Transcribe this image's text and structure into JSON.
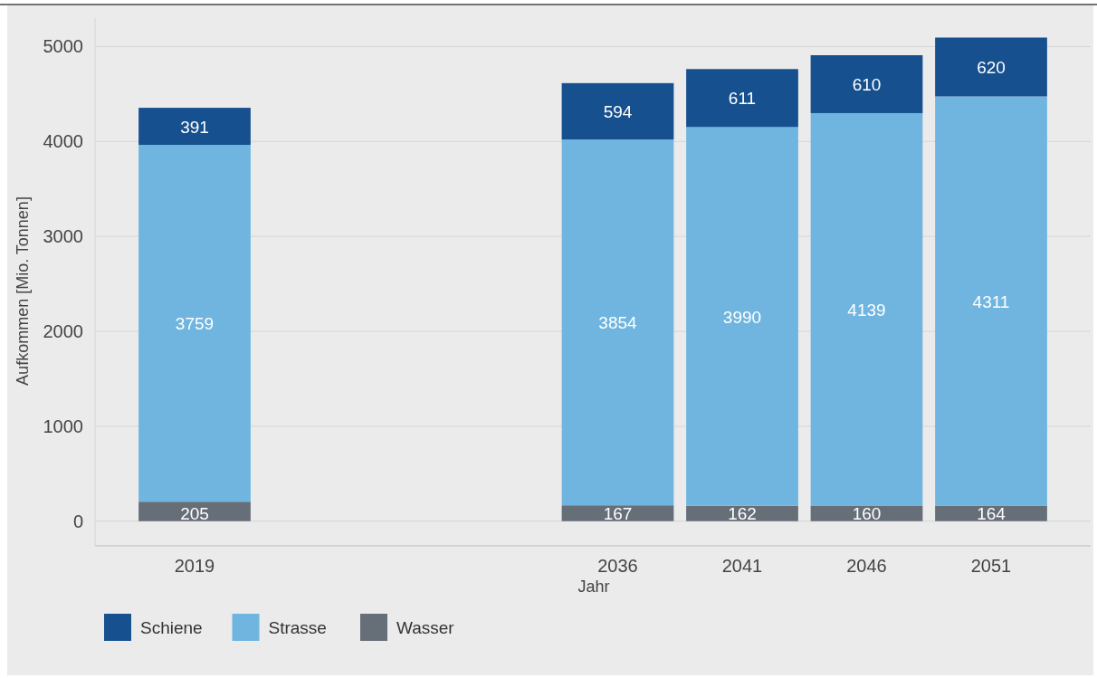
{
  "chart_data": {
    "type": "bar",
    "stacked": true,
    "xlabel": "Jahr",
    "ylabel": "Aufkommen [Mio. Tonnen]",
    "x": [
      2019,
      2036,
      2041,
      2046,
      2051
    ],
    "series": [
      {
        "name": "Wasser",
        "color": "#666e78",
        "values": [
          205,
          167,
          162,
          160,
          164
        ]
      },
      {
        "name": "Strasse",
        "color": "#6fb5e0",
        "values": [
          3759,
          3854,
          3990,
          4139,
          4311
        ]
      },
      {
        "name": "Schiene",
        "color": "#16508f",
        "values": [
          391,
          594,
          611,
          610,
          620
        ]
      }
    ],
    "xlim": [
      2015,
      2055
    ],
    "xticks": [
      2019,
      2036,
      2041,
      2046,
      2051
    ],
    "ylim": [
      -260,
      5300
    ],
    "yticks": [
      0,
      1000,
      2000,
      3000,
      4000,
      5000
    ],
    "grid": "y",
    "legend": "bottom left",
    "data_labels": true
  }
}
